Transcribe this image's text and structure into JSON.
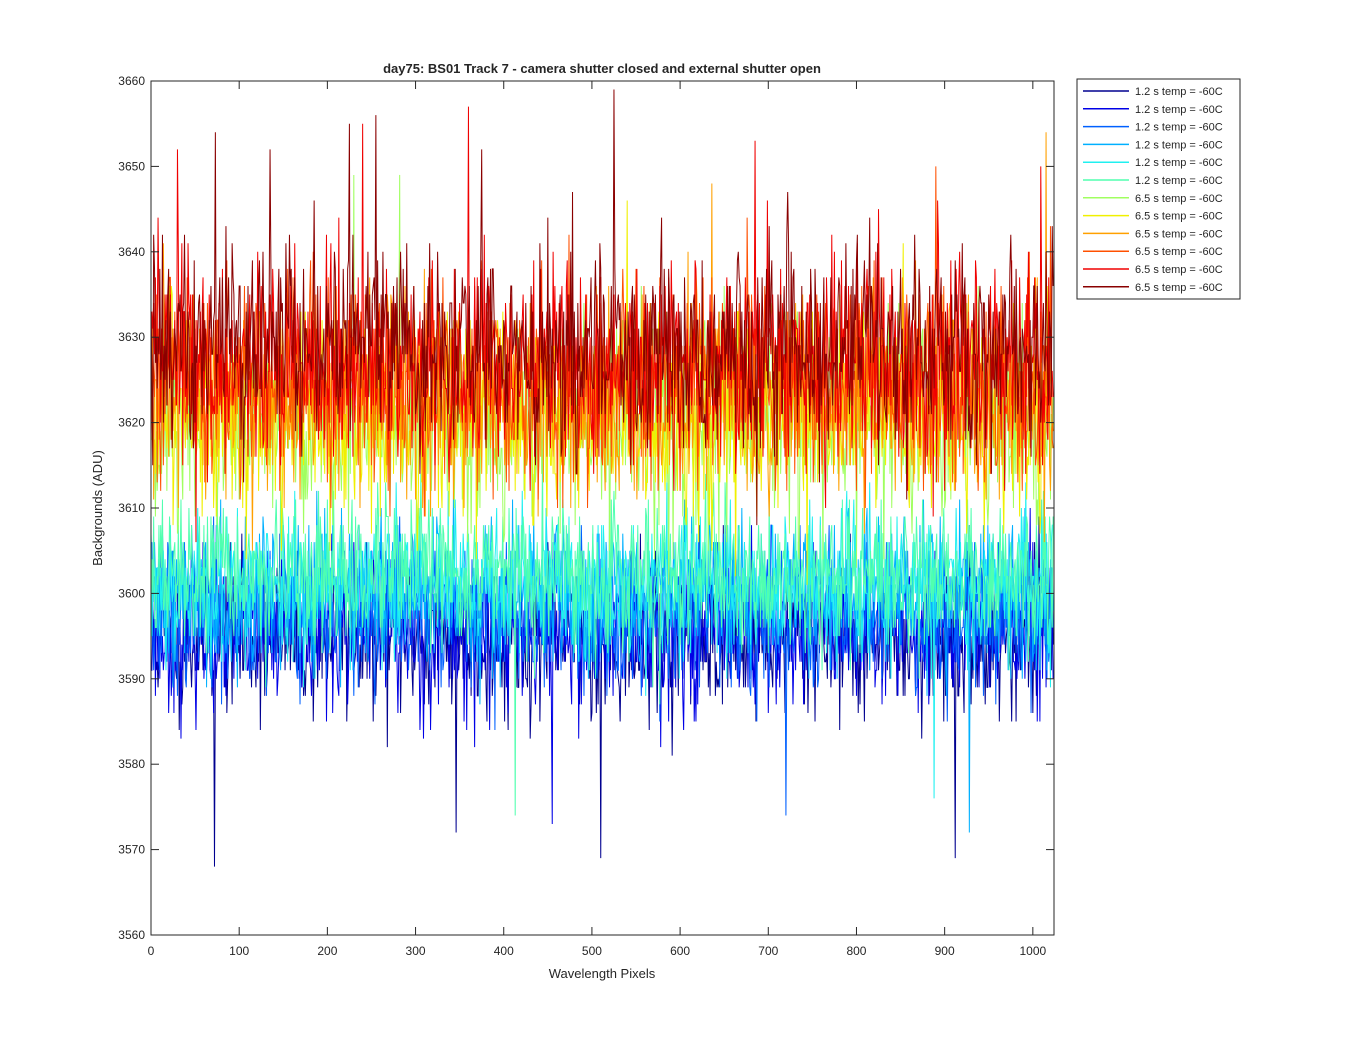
{
  "chart_data": {
    "type": "line",
    "title": "day75: BS01  Track 7 - camera shutter closed and external shutter open",
    "xlabel": "Wavelength Pixels",
    "ylabel": "Backgrounds (ADU)",
    "xlim": [
      0,
      1024
    ],
    "ylim": [
      3560,
      3660
    ],
    "xticks": [
      0,
      100,
      200,
      300,
      400,
      500,
      600,
      700,
      800,
      900,
      1000
    ],
    "yticks": [
      3560,
      3570,
      3580,
      3590,
      3600,
      3610,
      3620,
      3630,
      3640,
      3650,
      3660
    ],
    "grid": false,
    "legend_position": "outside-top-right",
    "series": [
      {
        "name": "1.2 s temp = -60C",
        "color": "#00008f",
        "mean": 3595,
        "sd": 4.5,
        "seed": 11,
        "spikes": [
          [
            72,
            3568
          ],
          [
            510,
            3569
          ],
          [
            912,
            3569
          ],
          [
            346,
            3572
          ]
        ]
      },
      {
        "name": "1.2 s temp = -60C",
        "color": "#0000e6",
        "mean": 3595.5,
        "sd": 4.5,
        "seed": 23,
        "spikes": [
          [
            455,
            3573
          ]
        ]
      },
      {
        "name": "1.2 s temp = -60C",
        "color": "#0060ff",
        "mean": 3598,
        "sd": 4.5,
        "seed": 37,
        "spikes": [
          [
            720,
            3574
          ]
        ]
      },
      {
        "name": "1.2 s temp = -60C",
        "color": "#00b0ff",
        "mean": 3600,
        "sd": 4.5,
        "seed": 41,
        "spikes": [
          [
            928,
            3572
          ]
        ]
      },
      {
        "name": "1.2 s temp = -60C",
        "color": "#20f0f0",
        "mean": 3601,
        "sd": 4.3,
        "seed": 53,
        "spikes": [
          [
            888,
            3576
          ]
        ]
      },
      {
        "name": "1.2 s temp = -60C",
        "color": "#50ffaf",
        "mean": 3602,
        "sd": 4.3,
        "seed": 67,
        "spikes": [
          [
            413,
            3574
          ]
        ]
      },
      {
        "name": "6.5 s temp = -60C",
        "color": "#a0ff60",
        "mean": 3620,
        "sd": 6,
        "seed": 71,
        "spikes": [
          [
            230,
            3649
          ],
          [
            282,
            3649
          ]
        ]
      },
      {
        "name": "6.5 s temp = -60C",
        "color": "#f0f000",
        "mean": 3621,
        "sd": 6,
        "seed": 83,
        "spikes": [
          [
            540,
            3646
          ]
        ]
      },
      {
        "name": "6.5 s temp = -60C",
        "color": "#ffa000",
        "mean": 3623,
        "sd": 6,
        "seed": 97,
        "spikes": [
          [
            1015,
            3654
          ],
          [
            636,
            3648
          ]
        ]
      },
      {
        "name": "6.5 s temp = -60C",
        "color": "#ff5000",
        "mean": 3625,
        "sd": 6,
        "seed": 101,
        "spikes": [
          [
            890,
            3650
          ]
        ]
      },
      {
        "name": "6.5 s temp = -60C",
        "color": "#f00000",
        "mean": 3627,
        "sd": 6,
        "seed": 113,
        "spikes": [
          [
            240,
            3655
          ],
          [
            360,
            3657
          ],
          [
            685,
            3653
          ],
          [
            1009,
            3650
          ],
          [
            30,
            3652
          ]
        ]
      },
      {
        "name": "6.5 s temp = -60C",
        "color": "#8a0000",
        "mean": 3629,
        "sd": 6,
        "seed": 127,
        "spikes": [
          [
            525,
            3659
          ],
          [
            73,
            3654
          ],
          [
            135,
            3652
          ],
          [
            225,
            3655
          ],
          [
            255,
            3656
          ],
          [
            375,
            3652
          ]
        ]
      }
    ]
  }
}
